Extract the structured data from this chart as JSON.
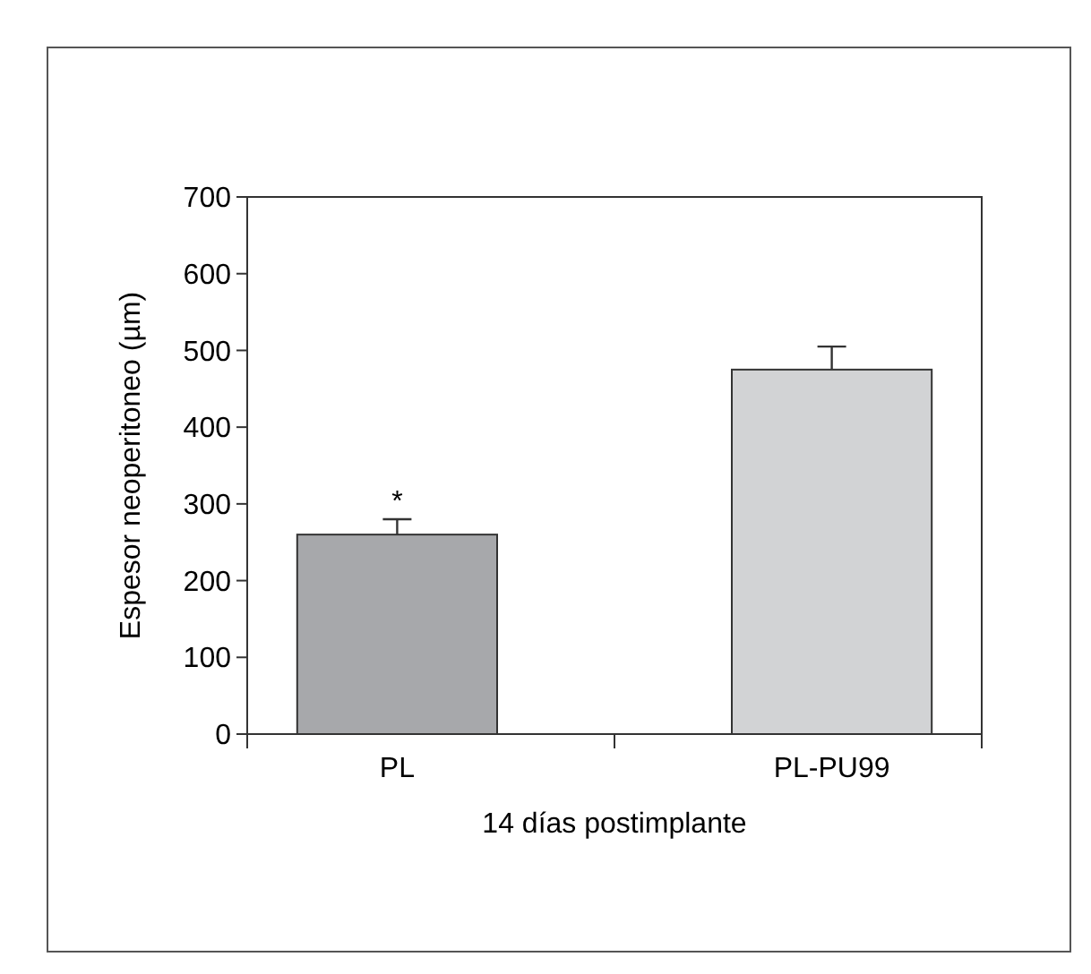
{
  "chart_data": {
    "type": "bar",
    "xlabel": "14 días postimplante",
    "ylabel": "Espesor neoperitoneo (µm)",
    "categories": [
      "PL",
      "PL-PU99"
    ],
    "values": [
      260,
      475
    ],
    "errors": [
      20,
      30
    ],
    "colors": [
      "#a7a8ab",
      "#d2d3d5"
    ],
    "ylim": [
      0,
      700
    ],
    "yticks": [
      0,
      100,
      200,
      300,
      400,
      500,
      600,
      700
    ],
    "grid": false,
    "annotations": [
      {
        "text": "*",
        "x": "PL",
        "y": 280
      }
    ]
  }
}
